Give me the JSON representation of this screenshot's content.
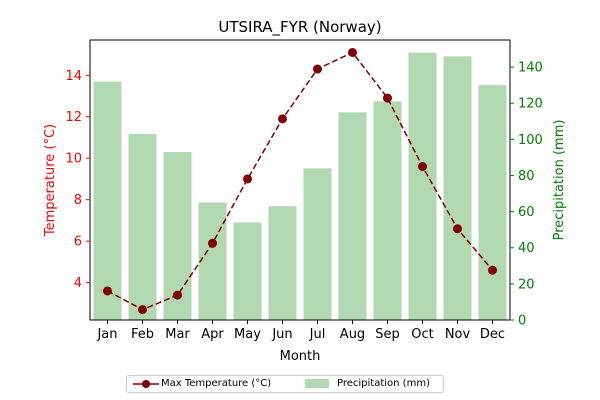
{
  "chart_data": {
    "type": "bar+line",
    "title": "UTSIRA_FYR (Norway)",
    "xlabel": "Month",
    "ylabel_left": "Temperature (°C)",
    "ylabel_right": "Precipitation (mm)",
    "categories": [
      "Jan",
      "Feb",
      "Mar",
      "Apr",
      "May",
      "Jun",
      "Jul",
      "Aug",
      "Sep",
      "Oct",
      "Nov",
      "Dec"
    ],
    "series": [
      {
        "name": "Max Temperature (°C)",
        "type": "line",
        "axis": "left",
        "values": [
          3.6,
          2.7,
          3.4,
          5.9,
          9.0,
          11.9,
          14.3,
          15.1,
          12.9,
          9.6,
          6.6,
          4.6
        ],
        "color": "#800000"
      },
      {
        "name": "Precipitation (mm)",
        "type": "bar",
        "axis": "right",
        "values": [
          132,
          103,
          93,
          65,
          54,
          63,
          84,
          115,
          121,
          148,
          146,
          130
        ],
        "color": "#b2d8b2"
      }
    ],
    "ylim_left": [
      2.2,
      15.7
    ],
    "ylim_right": [
      0,
      155
    ],
    "yticks_left": [
      4,
      6,
      8,
      10,
      12,
      14
    ],
    "yticks_right": [
      0,
      20,
      40,
      60,
      80,
      100,
      120,
      140
    ],
    "left_axis_color": "#ff0000",
    "right_axis_color": "#008000",
    "grid": false,
    "legend_position": "bottom-center"
  }
}
